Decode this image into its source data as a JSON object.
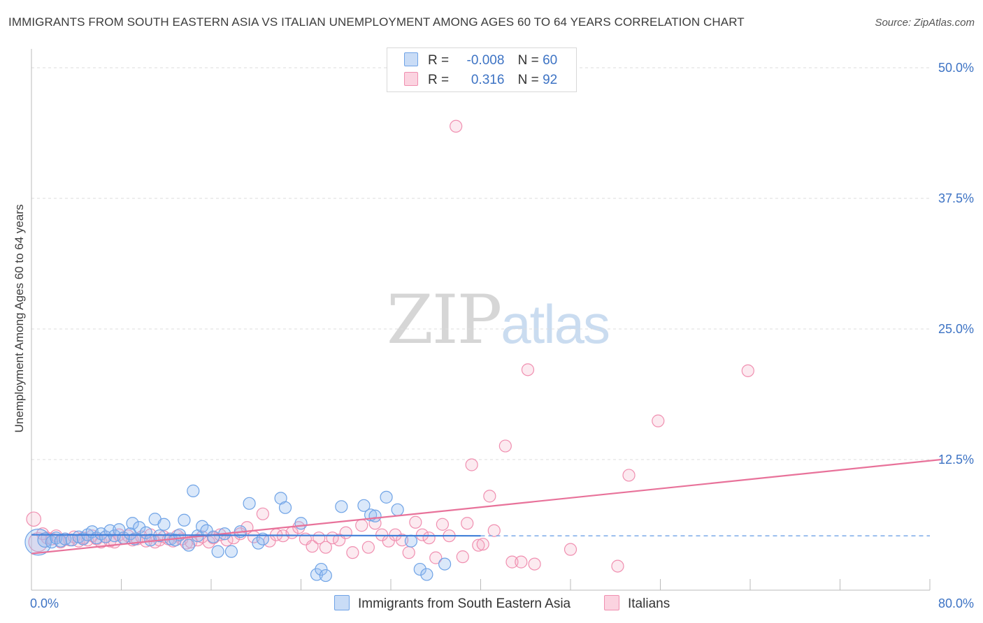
{
  "title": "IMMIGRANTS FROM SOUTH EASTERN ASIA VS ITALIAN UNEMPLOYMENT AMONG AGES 60 TO 64 YEARS CORRELATION CHART",
  "source": "Source: ZipAtlas.com",
  "watermark": {
    "zip": "ZIP",
    "atlas": "atlas"
  },
  "legend": {
    "r_label": "R =",
    "n_label": "N =",
    "rows": [
      {
        "r": "-0.008",
        "n": "60",
        "color": "#6fa3e6"
      },
      {
        "r": "0.316",
        "n": "92",
        "color": "#f08fb0"
      }
    ]
  },
  "bottom_legend": {
    "series1": "Immigrants from South Eastern Asia",
    "series2": "Italians"
  },
  "chart_data": {
    "type": "scatter",
    "title": "IMMIGRANTS FROM SOUTH EASTERN ASIA VS ITALIAN UNEMPLOYMENT AMONG AGES 60 TO 64 YEARS CORRELATION CHART",
    "xlabel": "",
    "ylabel": "Unemployment Among Ages 60 to 64 years",
    "xlim": [
      0,
      80
    ],
    "ylim": [
      0,
      52
    ],
    "x_tick_labels": [
      "0.0%",
      "80.0%"
    ],
    "y_ticks": [
      12.5,
      25.0,
      37.5,
      50.0
    ],
    "y_tick_labels": [
      "12.5%",
      "25.0%",
      "37.5%",
      "50.0%"
    ],
    "grid": "horizontal dashed",
    "legend_position": "top-center",
    "series": [
      {
        "name": "Immigrants from South Eastern Asia",
        "color": "#6fa3e6",
        "r": -0.008,
        "n": 60,
        "trend": {
          "x": [
            0,
            40
          ],
          "y": [
            5.3,
            5.2
          ],
          "extended_to": 80,
          "extended_style": "dashed"
        },
        "points": [
          [
            0.6,
            4.6,
            2.2
          ],
          [
            1.2,
            4.8,
            1.2
          ],
          [
            1.8,
            4.6,
            1
          ],
          [
            2.2,
            5.0,
            1
          ],
          [
            2.6,
            4.7,
            1
          ],
          [
            3.0,
            4.9,
            1
          ],
          [
            3.6,
            4.8,
            1
          ],
          [
            4.2,
            5.1,
            1
          ],
          [
            4.6,
            4.9,
            1
          ],
          [
            5.0,
            5.3,
            1
          ],
          [
            5.4,
            5.6,
            1
          ],
          [
            5.8,
            5.0,
            1
          ],
          [
            6.2,
            5.4,
            1
          ],
          [
            6.6,
            5.1,
            1
          ],
          [
            7.0,
            5.7,
            1
          ],
          [
            7.4,
            5.2,
            1
          ],
          [
            7.8,
            5.8,
            1
          ],
          [
            8.2,
            5.0,
            1
          ],
          [
            8.8,
            5.4,
            1
          ],
          [
            9.2,
            4.9,
            1
          ],
          [
            9.0,
            6.4,
            1
          ],
          [
            9.6,
            6.0,
            1
          ],
          [
            10.2,
            5.5,
            1
          ],
          [
            10.6,
            4.8,
            1
          ],
          [
            11.0,
            6.8,
            1
          ],
          [
            11.4,
            5.2,
            1
          ],
          [
            11.8,
            6.3,
            1
          ],
          [
            12.4,
            4.9,
            1
          ],
          [
            12.8,
            4.8,
            1
          ],
          [
            13.2,
            5.3,
            1
          ],
          [
            13.6,
            6.7,
            1
          ],
          [
            14.0,
            4.3,
            1
          ],
          [
            14.4,
            9.5,
            1
          ],
          [
            14.8,
            5.2,
            1
          ],
          [
            15.2,
            6.1,
            1
          ],
          [
            15.6,
            5.7,
            1
          ],
          [
            16.2,
            5.1,
            1
          ],
          [
            16.6,
            3.7,
            1
          ],
          [
            17.2,
            5.4,
            1
          ],
          [
            17.8,
            3.7,
            1
          ],
          [
            18.6,
            5.6,
            1
          ],
          [
            19.4,
            8.3,
            1
          ],
          [
            20.2,
            4.5,
            1
          ],
          [
            20.6,
            4.9,
            1
          ],
          [
            22.2,
            8.8,
            1
          ],
          [
            22.6,
            7.9,
            1
          ],
          [
            24.0,
            6.4,
            1
          ],
          [
            25.4,
            1.5,
            1
          ],
          [
            25.8,
            2.0,
            1
          ],
          [
            26.2,
            1.4,
            1
          ],
          [
            27.6,
            8.0,
            1
          ],
          [
            29.6,
            8.1,
            1
          ],
          [
            30.2,
            7.2,
            1
          ],
          [
            30.6,
            7.1,
            1
          ],
          [
            31.6,
            8.9,
            1
          ],
          [
            32.6,
            7.7,
            1
          ],
          [
            33.8,
            4.7,
            1
          ],
          [
            34.6,
            2.0,
            1
          ],
          [
            35.2,
            1.5,
            1
          ],
          [
            36.8,
            2.5,
            1
          ]
        ]
      },
      {
        "name": "Italians",
        "color": "#f08fb0",
        "r": 0.316,
        "n": 92,
        "trend": {
          "x": [
            0,
            81
          ],
          "y": [
            3.5,
            12.5
          ]
        },
        "points": [
          [
            0.2,
            6.8,
            1.2
          ],
          [
            0.6,
            4.6,
            1.6
          ],
          [
            1.0,
            5.4,
            1
          ],
          [
            1.4,
            5.0,
            1
          ],
          [
            1.8,
            4.9,
            1
          ],
          [
            2.2,
            5.2,
            1
          ],
          [
            2.6,
            4.6,
            1
          ],
          [
            3.0,
            4.9,
            1
          ],
          [
            3.4,
            4.8,
            1
          ],
          [
            3.8,
            5.1,
            1
          ],
          [
            4.2,
            4.7,
            1
          ],
          [
            4.6,
            5.0,
            1
          ],
          [
            5.0,
            4.8,
            1
          ],
          [
            5.4,
            5.2,
            1
          ],
          [
            5.8,
            4.9,
            1
          ],
          [
            6.2,
            4.6,
            1
          ],
          [
            6.6,
            5.1,
            1
          ],
          [
            7.0,
            4.7,
            1
          ],
          [
            7.4,
            4.6,
            1
          ],
          [
            7.8,
            5.3,
            1
          ],
          [
            8.2,
            5.0,
            1
          ],
          [
            8.6,
            5.2,
            1
          ],
          [
            9.0,
            4.8,
            1
          ],
          [
            9.4,
            4.9,
            1
          ],
          [
            9.8,
            5.1,
            1
          ],
          [
            10.2,
            4.7,
            1
          ],
          [
            10.6,
            5.3,
            1
          ],
          [
            11.0,
            4.6,
            1
          ],
          [
            11.4,
            4.8,
            1
          ],
          [
            11.8,
            5.1,
            1
          ],
          [
            12.2,
            4.9,
            1
          ],
          [
            12.6,
            4.7,
            1
          ],
          [
            13.0,
            5.2,
            1
          ],
          [
            13.4,
            4.9,
            1
          ],
          [
            13.8,
            4.5,
            1
          ],
          [
            14.2,
            4.6,
            1
          ],
          [
            14.8,
            4.8,
            1
          ],
          [
            15.2,
            5.1,
            1
          ],
          [
            15.8,
            4.6,
            1
          ],
          [
            16.2,
            5.0,
            1
          ],
          [
            16.8,
            5.3,
            1
          ],
          [
            17.4,
            4.8,
            1
          ],
          [
            18.0,
            5.0,
            1
          ],
          [
            18.6,
            5.4,
            1
          ],
          [
            19.2,
            6.0,
            1
          ],
          [
            19.8,
            5.1,
            1
          ],
          [
            20.6,
            7.3,
            1
          ],
          [
            21.2,
            4.7,
            1
          ],
          [
            21.8,
            5.3,
            1
          ],
          [
            22.4,
            5.2,
            1
          ],
          [
            23.2,
            5.5,
            1
          ],
          [
            23.8,
            6.0,
            1
          ],
          [
            24.4,
            4.9,
            1
          ],
          [
            25.0,
            4.2,
            1
          ],
          [
            25.6,
            5.0,
            1
          ],
          [
            26.2,
            4.1,
            1
          ],
          [
            26.8,
            5.0,
            1
          ],
          [
            27.4,
            4.8,
            1
          ],
          [
            28.0,
            5.5,
            1
          ],
          [
            28.6,
            3.6,
            1
          ],
          [
            29.4,
            6.2,
            1
          ],
          [
            30.0,
            4.1,
            1
          ],
          [
            30.6,
            6.4,
            1
          ],
          [
            31.2,
            5.3,
            1
          ],
          [
            31.8,
            4.7,
            1
          ],
          [
            32.4,
            5.3,
            1
          ],
          [
            33.0,
            4.8,
            1
          ],
          [
            33.6,
            3.6,
            1
          ],
          [
            34.2,
            6.5,
            1
          ],
          [
            34.8,
            5.3,
            1
          ],
          [
            35.4,
            5.0,
            1
          ],
          [
            36.0,
            3.1,
            1
          ],
          [
            36.6,
            6.3,
            1
          ],
          [
            37.2,
            5.2,
            1
          ],
          [
            37.8,
            44.4,
            1
          ],
          [
            38.4,
            3.2,
            1
          ],
          [
            38.8,
            6.4,
            1
          ],
          [
            39.2,
            12.0,
            1
          ],
          [
            39.8,
            4.3,
            1
          ],
          [
            40.2,
            4.4,
            1
          ],
          [
            40.8,
            9.0,
            1
          ],
          [
            41.2,
            5.7,
            1
          ],
          [
            42.2,
            13.8,
            1
          ],
          [
            42.8,
            2.7,
            1
          ],
          [
            43.6,
            2.7,
            1
          ],
          [
            44.2,
            21.1,
            1
          ],
          [
            44.8,
            2.5,
            1
          ],
          [
            48.0,
            3.9,
            1
          ],
          [
            52.2,
            2.3,
            1
          ],
          [
            53.2,
            11.0,
            1
          ],
          [
            55.8,
            16.2,
            1
          ],
          [
            63.8,
            21.0,
            1
          ]
        ]
      }
    ]
  }
}
